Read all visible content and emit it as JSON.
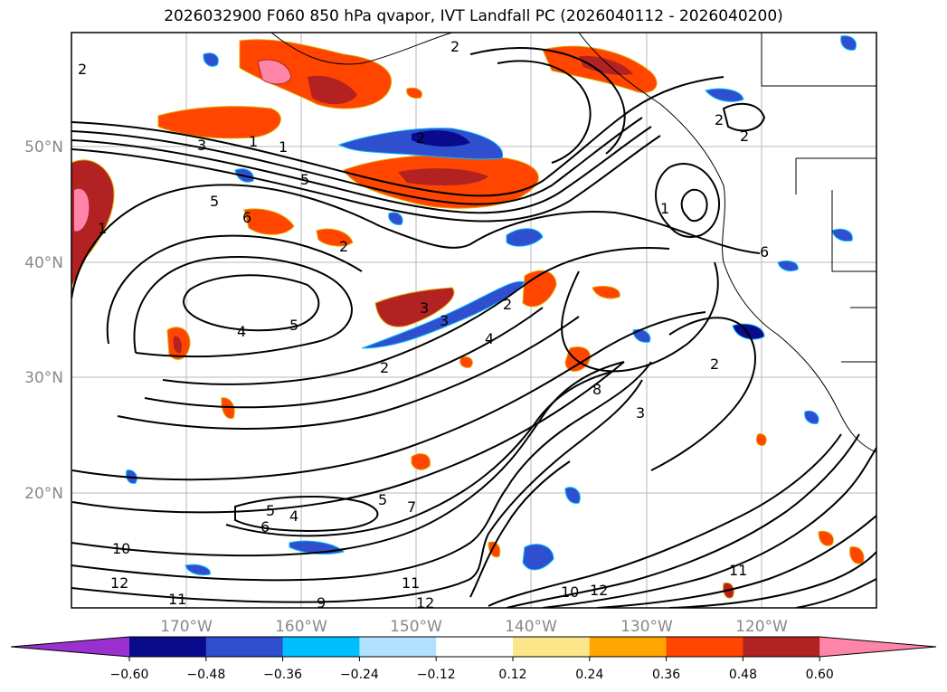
{
  "title": "2026032900 F060 850 hPa qvapor, IVT Landfall PC (2026040112 - 2026040200)",
  "lat_labels": [
    "50°N",
    "40°N",
    "30°N",
    "20°N"
  ],
  "lon_labels": [
    "170°W",
    "160°W",
    "150°W",
    "140°W",
    "130°W",
    "120°W"
  ],
  "colorbar": {
    "ticks": [
      "−0.60",
      "−0.48",
      "−0.36",
      "−0.24",
      "−0.12",
      "0.12",
      "0.24",
      "0.36",
      "0.48",
      "0.60"
    ],
    "colors": [
      "#9b30d0",
      "#0a0a8c",
      "#2f4fcf",
      "#00bfff",
      "#b0e2ff",
      "#ffffff",
      "#fde68a",
      "#ffa500",
      "#ff4500",
      "#b22222",
      "#ff85a8"
    ]
  },
  "contour_labels": [
    "2",
    "2",
    "2",
    "1",
    "1",
    "3",
    "5",
    "5",
    "1",
    "6",
    "2",
    "2",
    "4",
    "5",
    "3",
    "3",
    "2",
    "4",
    "2",
    "8",
    "3",
    "2",
    "6",
    "5",
    "5",
    "6",
    "4",
    "7",
    "10",
    "12",
    "11",
    "9",
    "11",
    "12",
    "10",
    "12",
    "11",
    "2",
    "1"
  ]
}
